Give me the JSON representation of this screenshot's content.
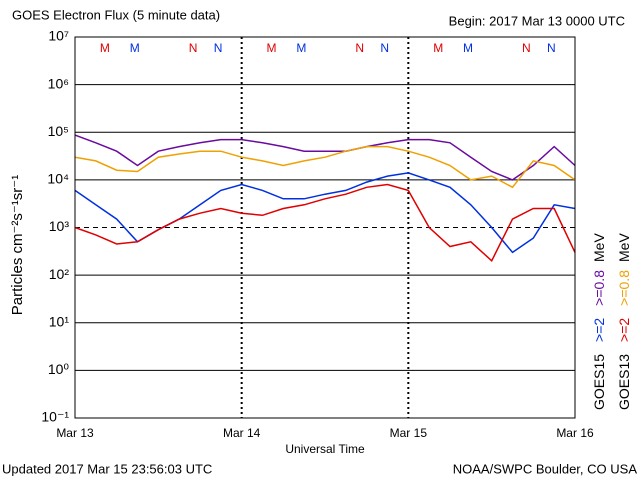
{
  "chart_data": {
    "type": "line",
    "title": "GOES Electron Flux (5 minute data)",
    "subtitle": "Begin: 2017 Mar 13 0000 UTC",
    "ylabel": "Particles cm⁻²s⁻¹sr⁻¹",
    "xlabel": "Universal Time",
    "footer_left": "Updated 2017 Mar 15 23:56:03 UTC",
    "footer_right": "NOAA/SWPC Boulder, CO USA",
    "log_y": true,
    "grid": true,
    "threshold": 1000,
    "ylim": [
      0.1,
      10000000
    ],
    "yticks": [
      {
        "value": 0.1,
        "label": "10⁻¹"
      },
      {
        "value": 1,
        "label": "10⁰"
      },
      {
        "value": 10,
        "label": "10¹"
      },
      {
        "value": 100,
        "label": "10²"
      },
      {
        "value": 1000,
        "label": "10³"
      },
      {
        "value": 10000,
        "label": "10⁴"
      },
      {
        "value": 100000,
        "label": "10⁵"
      },
      {
        "value": 1000000,
        "label": "10⁶"
      },
      {
        "value": 10000000,
        "label": "10⁷"
      }
    ],
    "xlim": [
      0,
      72
    ],
    "xticks": [
      {
        "value": 0,
        "label": "Mar 13"
      },
      {
        "value": 24,
        "label": "Mar 14"
      },
      {
        "value": 48,
        "label": "Mar 15"
      },
      {
        "value": 72,
        "label": "Mar 16"
      }
    ],
    "x": [
      0,
      3,
      6,
      9,
      12,
      15,
      18,
      21,
      24,
      27,
      30,
      33,
      36,
      39,
      42,
      45,
      48,
      51,
      54,
      57,
      60,
      63,
      66,
      69,
      72
    ],
    "legend": [
      {
        "label": "GOES15",
        "unit": "MeV"
      },
      {
        "label": "GOES13",
        "unit": "MeV"
      }
    ],
    "series": [
      {
        "name": ">=2",
        "group": 0,
        "color": "#0030e0",
        "values": [
          6000,
          3000,
          1500,
          500,
          900,
          1500,
          3000,
          6000,
          8000,
          6000,
          4000,
          4000,
          5000,
          6000,
          9000,
          12000,
          14000,
          10000,
          7000,
          3000,
          1000,
          300,
          600,
          3000,
          2500
        ]
      },
      {
        "name": ">=0.8",
        "group": 0,
        "color": "#6a0aa0",
        "values": [
          87000,
          60000,
          40000,
          20000,
          40000,
          50000,
          60000,
          70000,
          70000,
          60000,
          50000,
          40000,
          40000,
          40000,
          50000,
          60000,
          70000,
          70000,
          60000,
          30000,
          15000,
          10000,
          20000,
          50000,
          20000
        ]
      },
      {
        "name": ">=2",
        "group": 1,
        "color": "#e00000",
        "values": [
          1000,
          700,
          450,
          500,
          900,
          1500,
          2000,
          2500,
          2000,
          1800,
          2500,
          3000,
          4000,
          5000,
          7000,
          8000,
          6000,
          1000,
          400,
          500,
          200,
          1500,
          2500,
          2500,
          300
        ]
      },
      {
        "name": ">=0.8",
        "group": 1,
        "color": "#f0a000",
        "values": [
          30000,
          25000,
          16000,
          15000,
          30000,
          35000,
          40000,
          40000,
          30000,
          25000,
          20000,
          25000,
          30000,
          40000,
          50000,
          50000,
          40000,
          30000,
          20000,
          10000,
          12000,
          7000,
          25000,
          20000,
          10000
        ]
      }
    ],
    "annotations": [
      {
        "text": "M",
        "x": 4.3,
        "color": "#e00000"
      },
      {
        "text": "M",
        "x": 8.6,
        "color": "#0030e0"
      },
      {
        "text": "N",
        "x": 17,
        "color": "#e00000"
      },
      {
        "text": "N",
        "x": 20.6,
        "color": "#0030e0"
      },
      {
        "text": "M",
        "x": 28.3,
        "color": "#e00000"
      },
      {
        "text": "M",
        "x": 32.6,
        "color": "#0030e0"
      },
      {
        "text": "N",
        "x": 41,
        "color": "#e00000"
      },
      {
        "text": "N",
        "x": 44.6,
        "color": "#0030e0"
      },
      {
        "text": "M",
        "x": 52.3,
        "color": "#e00000"
      },
      {
        "text": "M",
        "x": 56.6,
        "color": "#0030e0"
      },
      {
        "text": "N",
        "x": 65,
        "color": "#e00000"
      },
      {
        "text": "N",
        "x": 68.6,
        "color": "#0030e0"
      }
    ]
  }
}
